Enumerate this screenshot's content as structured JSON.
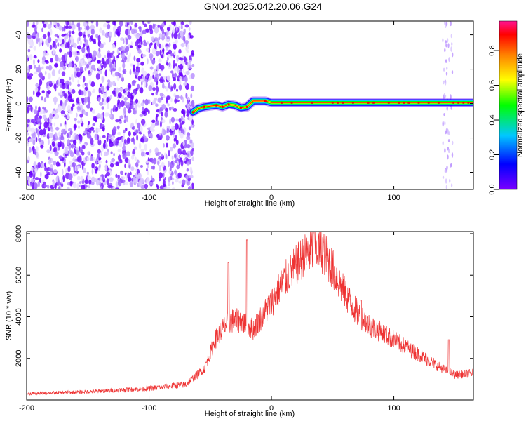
{
  "title": "GN04.2025.042.20.06.G24",
  "chart_data": [
    {
      "type": "heatmap",
      "title": "GN04.2025.042.20.06.G24",
      "xlabel": "Height of straight line (km)",
      "ylabel": "Frequency (Hz)",
      "colorbar_label": "Normalized spectral amplitude",
      "xlim": [
        -200,
        165
      ],
      "ylim": [
        -50,
        48
      ],
      "clim": [
        0,
        0.97
      ],
      "x_ticks": [
        -200,
        -100,
        0,
        100
      ],
      "y_ticks": [
        -40,
        -20,
        0,
        20,
        40
      ],
      "colorbar_ticks": [
        0.0,
        0.2,
        0.4,
        0.6,
        0.8
      ],
      "colormap": "rainbow (violet-blue-cyan-green-yellow-orange-red-pink)",
      "noise_region_x": [
        -200,
        -64
      ],
      "weak_column_x": [
        140,
        148
      ],
      "signal_track": [
        {
          "x": -64,
          "y": -5
        },
        {
          "x": -60,
          "y": -3
        },
        {
          "x": -55,
          "y": -2
        },
        {
          "x": -50,
          "y": -1.5
        },
        {
          "x": -45,
          "y": -1
        },
        {
          "x": -40,
          "y": -2
        },
        {
          "x": -35,
          "y": -0.5
        },
        {
          "x": -30,
          "y": -1
        },
        {
          "x": -25,
          "y": -2.5
        },
        {
          "x": -20,
          "y": -2
        },
        {
          "x": -15,
          "y": 1.5
        },
        {
          "x": -10,
          "y": 1.5
        },
        {
          "x": -5,
          "y": 1.5
        },
        {
          "x": 0,
          "y": 0.5
        },
        {
          "x": 50,
          "y": 0.5
        },
        {
          "x": 100,
          "y": 0.5
        },
        {
          "x": 165,
          "y": 0.5
        }
      ]
    },
    {
      "type": "line",
      "xlabel": "Height of straight line (km)",
      "ylabel": "SNR (10 * v/v)",
      "xlim": [
        -200,
        165
      ],
      "ylim": [
        0,
        8100
      ],
      "x_ticks": [
        -200,
        -100,
        0,
        100
      ],
      "y_ticks": [
        2000,
        4000,
        6000,
        8000
      ],
      "color": "#ee3333",
      "envelope": [
        {
          "x": -200,
          "y": 300
        },
        {
          "x": -150,
          "y": 400
        },
        {
          "x": -100,
          "y": 550
        },
        {
          "x": -70,
          "y": 750
        },
        {
          "x": -55,
          "y": 1500
        },
        {
          "x": -45,
          "y": 3000
        },
        {
          "x": -35,
          "y": 3800
        },
        {
          "x": -25,
          "y": 3800
        },
        {
          "x": -15,
          "y": 3400
        },
        {
          "x": 0,
          "y": 4700
        },
        {
          "x": 10,
          "y": 5700
        },
        {
          "x": 25,
          "y": 6800
        },
        {
          "x": 35,
          "y": 7300
        },
        {
          "x": 42,
          "y": 7200
        },
        {
          "x": 50,
          "y": 6300
        },
        {
          "x": 60,
          "y": 5100
        },
        {
          "x": 70,
          "y": 4200
        },
        {
          "x": 80,
          "y": 3600
        },
        {
          "x": 100,
          "y": 2900
        },
        {
          "x": 120,
          "y": 2200
        },
        {
          "x": 140,
          "y": 1500
        },
        {
          "x": 150,
          "y": 1200
        },
        {
          "x": 165,
          "y": 1300
        }
      ],
      "spikes": [
        {
          "x": -20,
          "y": 7700
        },
        {
          "x": -35,
          "y": 6600
        },
        {
          "x": 35,
          "y": 8100
        },
        {
          "x": 73,
          "y": 4800
        },
        {
          "x": 145,
          "y": 2900
        }
      ]
    }
  ]
}
